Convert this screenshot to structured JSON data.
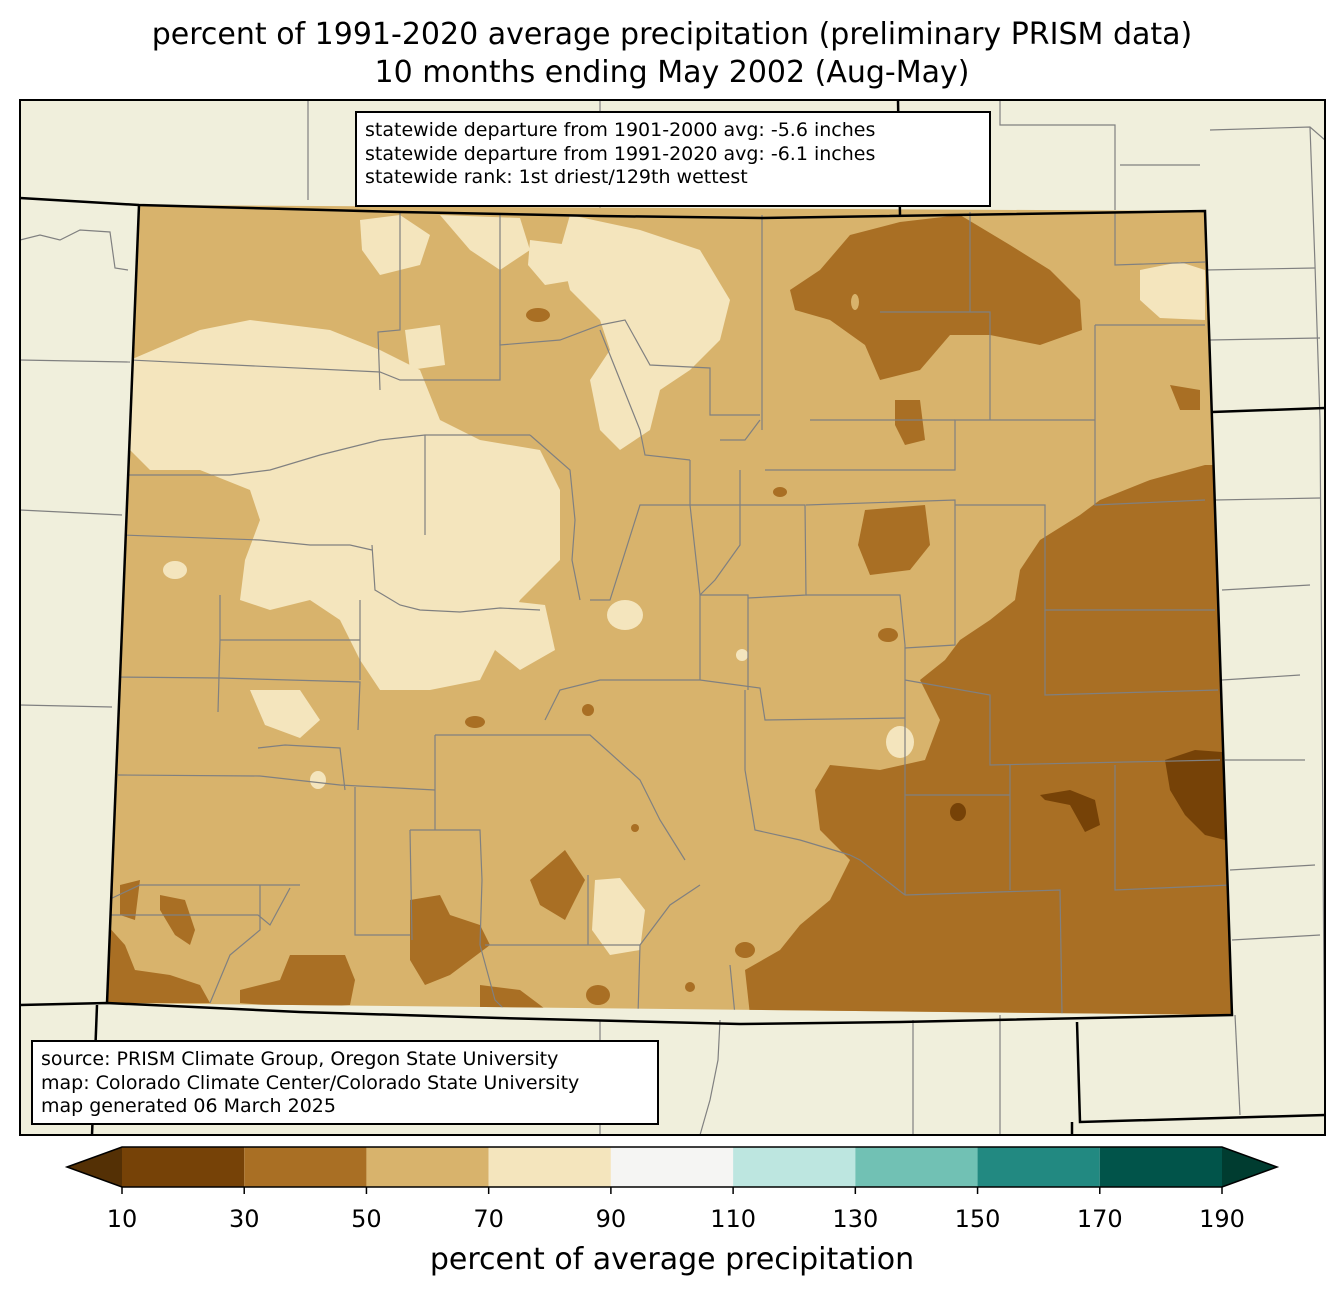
{
  "title_line1": "percent of 1991-2020 average precipitation (preliminary PRISM data)",
  "title_line2": "10 months ending May 2002 (Aug-May)",
  "stats": [
    "statewide departure from 1901-2000 avg: -5.6 inches",
    "statewide departure from 1991-2020 avg: -6.1 inches",
    "statewide rank: 1st driest/129th wettest"
  ],
  "source": [
    "source: PRISM Climate Group, Oregon State University",
    "map: Colorado Climate Center/Colorado State University",
    "map generated 06 March 2025"
  ],
  "colorbar": {
    "title": "percent of average precipitation",
    "ticks": [
      "10",
      "30",
      "50",
      "70",
      "90",
      "110",
      "130",
      "150",
      "170",
      "190"
    ],
    "under_color": "#543005",
    "over_color": "#003c30",
    "bins": [
      {
        "min": 10,
        "max": 30,
        "color": "#764207"
      },
      {
        "min": 30,
        "max": 50,
        "color": "#a96f24"
      },
      {
        "min": 50,
        "max": 70,
        "color": "#d8b36c"
      },
      {
        "min": 70,
        "max": 90,
        "color": "#f4e5bd"
      },
      {
        "min": 90,
        "max": 110,
        "color": "#f5f5f3"
      },
      {
        "min": 110,
        "max": 130,
        "color": "#bde6e0"
      },
      {
        "min": 130,
        "max": 150,
        "color": "#71c1b4"
      },
      {
        "min": 150,
        "max": 170,
        "color": "#228981"
      },
      {
        "min": 170,
        "max": 190,
        "color": "#01544a"
      }
    ]
  },
  "colors": {
    "background_land": "#f0efdc",
    "county_lines": "#808080"
  }
}
